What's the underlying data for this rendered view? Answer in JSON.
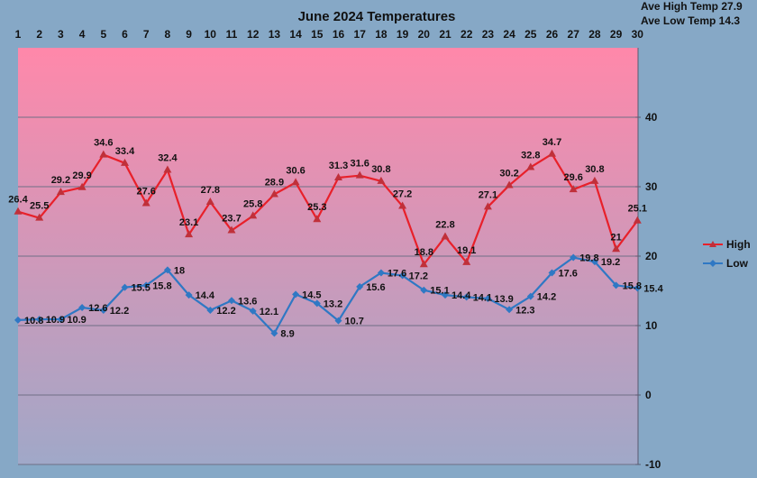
{
  "chart_data": {
    "type": "line",
    "title": "June 2024 Temperatures",
    "xlabel": "",
    "ylabel": "",
    "x": [
      "1",
      "2",
      "3",
      "4",
      "5",
      "6",
      "7",
      "8",
      "9",
      "10",
      "11",
      "12",
      "13",
      "14",
      "15",
      "16",
      "17",
      "18",
      "19",
      "20",
      "21",
      "22",
      "23",
      "24",
      "25",
      "26",
      "27",
      "28",
      "29",
      "30"
    ],
    "ylim": [
      -10,
      50
    ],
    "y_ticks": [
      "-10",
      "0",
      "10",
      "20",
      "30",
      "40"
    ],
    "grid": true,
    "legend_position": "right",
    "annotations": [
      "Ave High Temp 27.9",
      "Ave Low Temp 14.3"
    ],
    "series": [
      {
        "name": "High",
        "color": "#e8202a",
        "marker": "triangle",
        "values": [
          26.4,
          25.5,
          29.2,
          29.9,
          34.6,
          33.4,
          27.6,
          32.4,
          23.1,
          27.8,
          23.7,
          25.8,
          28.9,
          30.6,
          25.3,
          31.3,
          31.6,
          30.8,
          27.2,
          18.8,
          22.8,
          19.1,
          27.1,
          30.2,
          32.8,
          34.7,
          29.6,
          30.8,
          21,
          25.1
        ],
        "labels": [
          "26.4",
          "25.5",
          "29.2",
          "29.9",
          "34.6",
          "33.4",
          "27.6",
          "32.4",
          "23.1",
          "27.8",
          "23.7",
          "25.8",
          "28.9",
          "30.6",
          "25.3",
          "31.3",
          "31.6",
          "30.8",
          "27.2",
          "18.8",
          "22.8",
          "19.1",
          "27.1",
          "30.2",
          "32.8",
          "34.7",
          "29.6",
          "30.8",
          "21",
          "25.1"
        ]
      },
      {
        "name": "Low",
        "color": "#2f78c4",
        "marker": "diamond",
        "values": [
          10.8,
          10.9,
          10.9,
          12.6,
          12.2,
          15.5,
          15.8,
          18,
          14.4,
          12.2,
          13.6,
          12.1,
          8.9,
          14.5,
          13.2,
          10.7,
          15.6,
          17.6,
          17.2,
          15.1,
          14.4,
          14.1,
          13.9,
          12.3,
          14.2,
          17.6,
          19.8,
          19.2,
          15.8,
          15.4
        ],
        "labels": [
          "10.8",
          "10.9",
          "10.9",
          "12.6",
          "12.2",
          "15.5",
          "15.8",
          "18",
          "14.4",
          "12.2",
          "13.6",
          "12.1",
          "8.9",
          "14.5",
          "13.2",
          "10.7",
          "15.6",
          "17.6",
          "17.2",
          "15.1",
          "14.4",
          "14.1",
          "13.9",
          "12.3",
          "14.2",
          "17.6",
          "19.8",
          "19.2",
          "15.8",
          "15.4"
        ]
      }
    ]
  },
  "colors": {
    "page_background": "#86a8c6",
    "plot_gradient_top": "#ff88aa",
    "plot_gradient_bottom": "#a0a8c8",
    "gridline": "#6f6f86"
  }
}
